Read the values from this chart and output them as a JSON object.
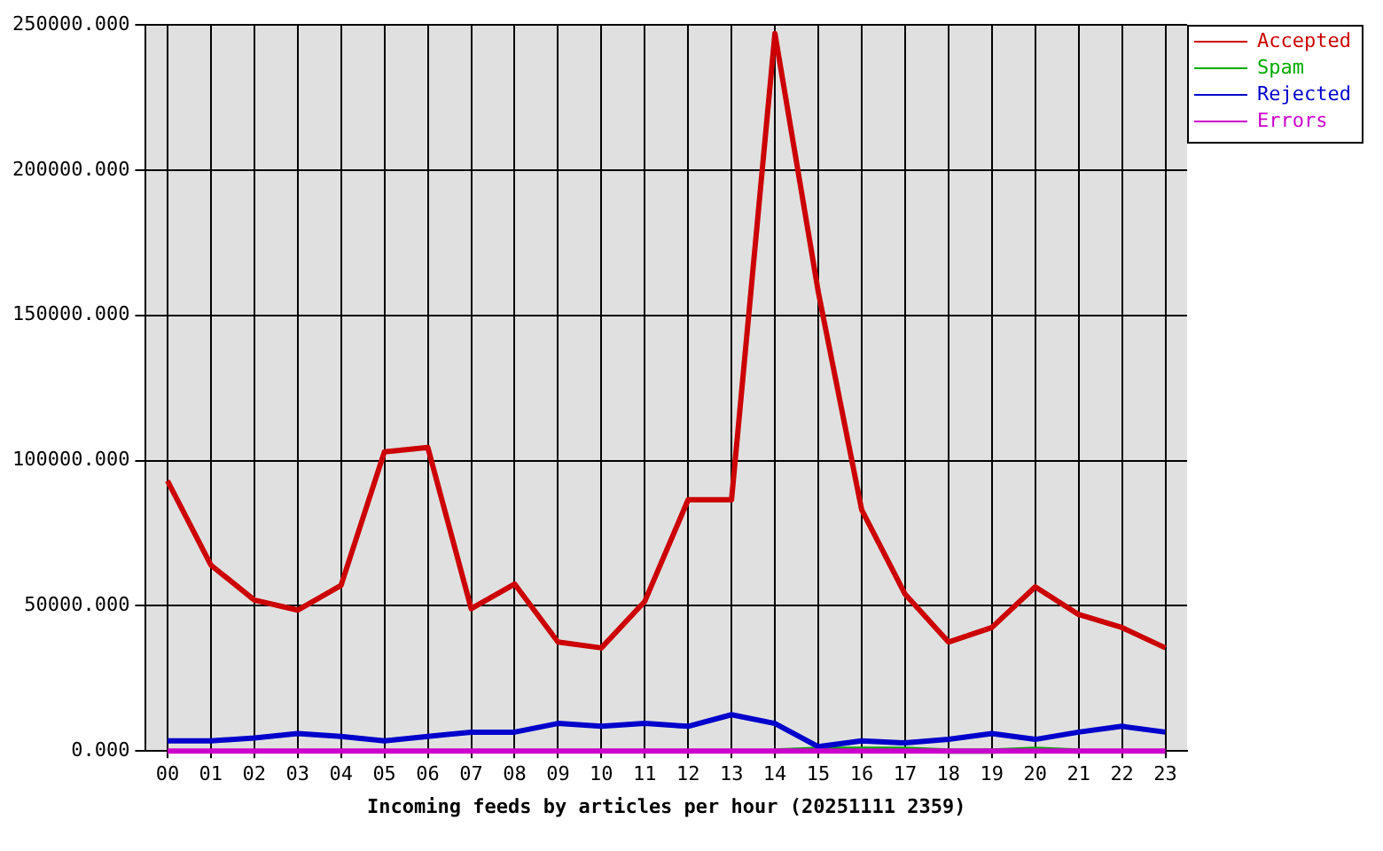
{
  "chart_data": {
    "type": "line",
    "xlabel": "Incoming feeds by articles per hour (20251111 2359)",
    "categories": [
      "00",
      "01",
      "02",
      "03",
      "04",
      "05",
      "06",
      "07",
      "08",
      "09",
      "10",
      "11",
      "12",
      "13",
      "14",
      "15",
      "16",
      "17",
      "18",
      "19",
      "20",
      "21",
      "22",
      "23"
    ],
    "series": [
      {
        "name": "Accepted",
        "color": "#cc0000",
        "values": [
          93000,
          64000,
          52000,
          48500,
          57000,
          103000,
          104500,
          49000,
          57500,
          37500,
          35500,
          51500,
          86500,
          86500,
          247000,
          158000,
          83000,
          54000,
          37500,
          42500,
          56500,
          47000,
          42500,
          35500
        ]
      },
      {
        "name": "Spam",
        "color": "#00aa00",
        "values": [
          null,
          null,
          null,
          null,
          null,
          null,
          null,
          null,
          null,
          null,
          null,
          null,
          null,
          null,
          0,
          600,
          600,
          600,
          0,
          0,
          600,
          0,
          null,
          null
        ]
      },
      {
        "name": "Rejected",
        "color": "#0000cc",
        "values": [
          3500,
          3500,
          4500,
          6000,
          5000,
          3500,
          5000,
          6500,
          6500,
          9500,
          8500,
          9500,
          8500,
          12500,
          9500,
          1500,
          3500,
          2800,
          4000,
          6000,
          4000,
          6500,
          8500,
          6500
        ]
      },
      {
        "name": "Errors",
        "color": "#cc00cc",
        "values": [
          0,
          0,
          0,
          0,
          0,
          0,
          0,
          0,
          0,
          0,
          0,
          0,
          0,
          0,
          0,
          0,
          0,
          0,
          0,
          0,
          0,
          0,
          0,
          0
        ]
      }
    ],
    "ylim": [
      0,
      250000
    ],
    "yticks": [
      {
        "value": 0,
        "label": "0.000"
      },
      {
        "value": 50000,
        "label": "50000.000"
      },
      {
        "value": 100000,
        "label": "100000.000"
      },
      {
        "value": 150000,
        "label": "150000.000"
      },
      {
        "value": 200000,
        "label": "200000.000"
      },
      {
        "value": 250000,
        "label": "250000.000"
      }
    ],
    "grid": true,
    "legend": "top right",
    "marker": "none",
    "line_style": "solid"
  }
}
